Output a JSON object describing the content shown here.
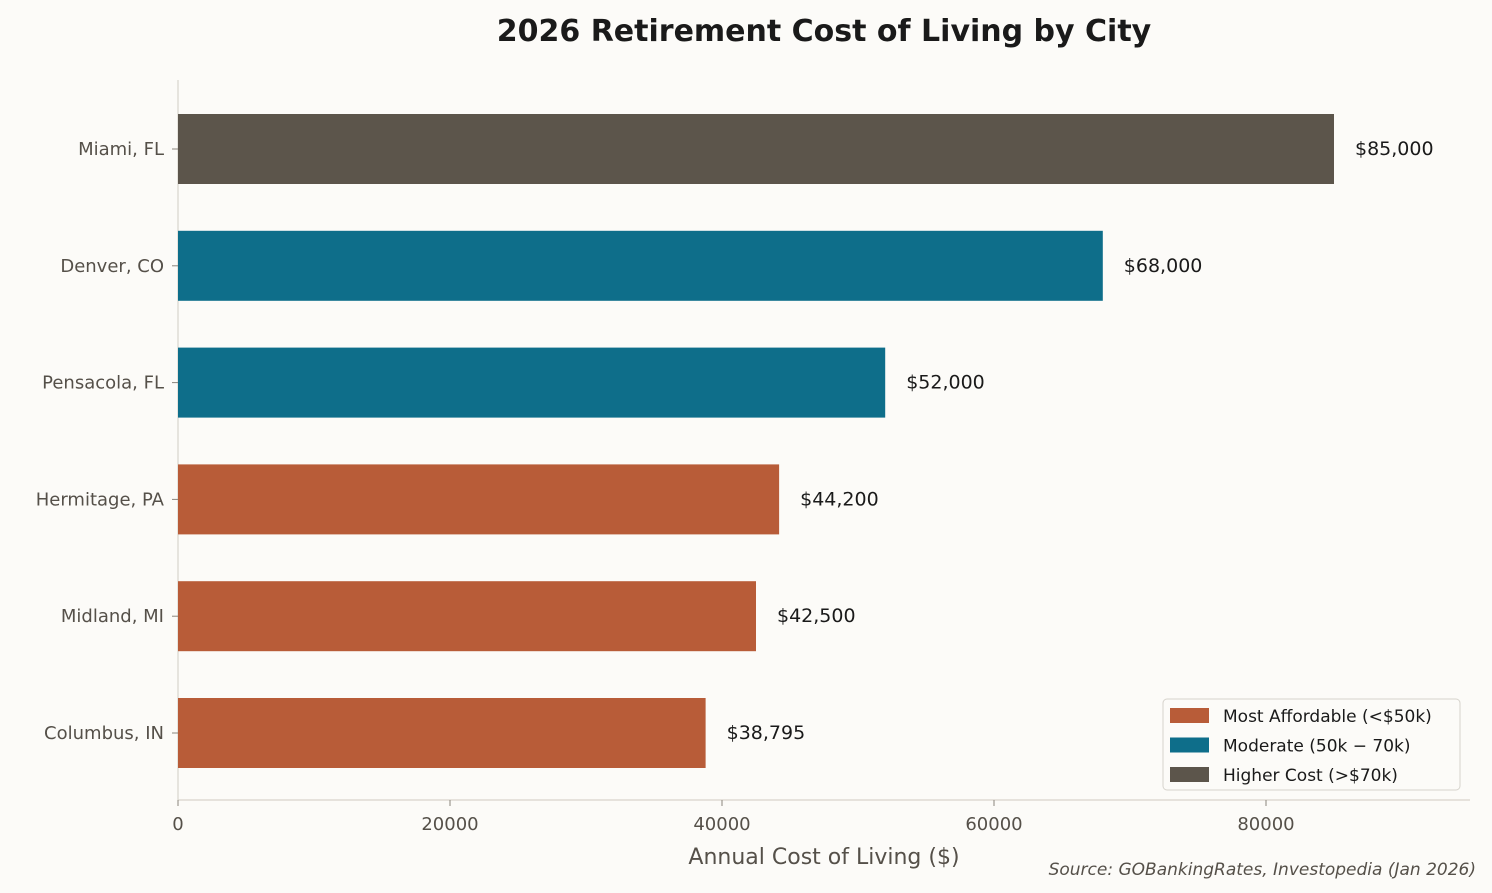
{
  "chart_data": {
    "type": "bar",
    "orientation": "horizontal",
    "title": "2026 Retirement Cost of Living by City",
    "xlabel": "Annual Cost of Living ($)",
    "ylabel": "",
    "xlim": [
      0,
      95000
    ],
    "xticks": [
      0,
      20000,
      40000,
      60000,
      80000
    ],
    "xtick_labels": [
      "0",
      "20000",
      "40000",
      "60000",
      "80000"
    ],
    "categories": [
      "Columbus, IN",
      "Midland, MI",
      "Hermitage, PA",
      "Pensacola, FL",
      "Denver, CO",
      "Miami, FL"
    ],
    "values": [
      38795,
      42500,
      44200,
      52000,
      68000,
      85000
    ],
    "value_labels": [
      "$38,795",
      "$42,500",
      "$44,200",
      "$52,000",
      "$68,000",
      "$85,000"
    ],
    "groups": [
      "affordable",
      "affordable",
      "affordable",
      "moderate",
      "moderate",
      "higher"
    ],
    "colors": {
      "affordable": "#b85c38",
      "moderate": "#0e6e8a",
      "higher": "#5c554b"
    },
    "legend": {
      "placement": "bottom-right",
      "entries": [
        {
          "group": "affordable",
          "label": "Most Affordable (<$50k)"
        },
        {
          "group": "moderate",
          "label": "Moderate (50k − 70k)"
        },
        {
          "group": "higher",
          "label": "Higher Cost (>$70k)"
        }
      ]
    },
    "source": "Source: GOBankingRates, Investopedia (Jan 2026)",
    "grid": false
  }
}
